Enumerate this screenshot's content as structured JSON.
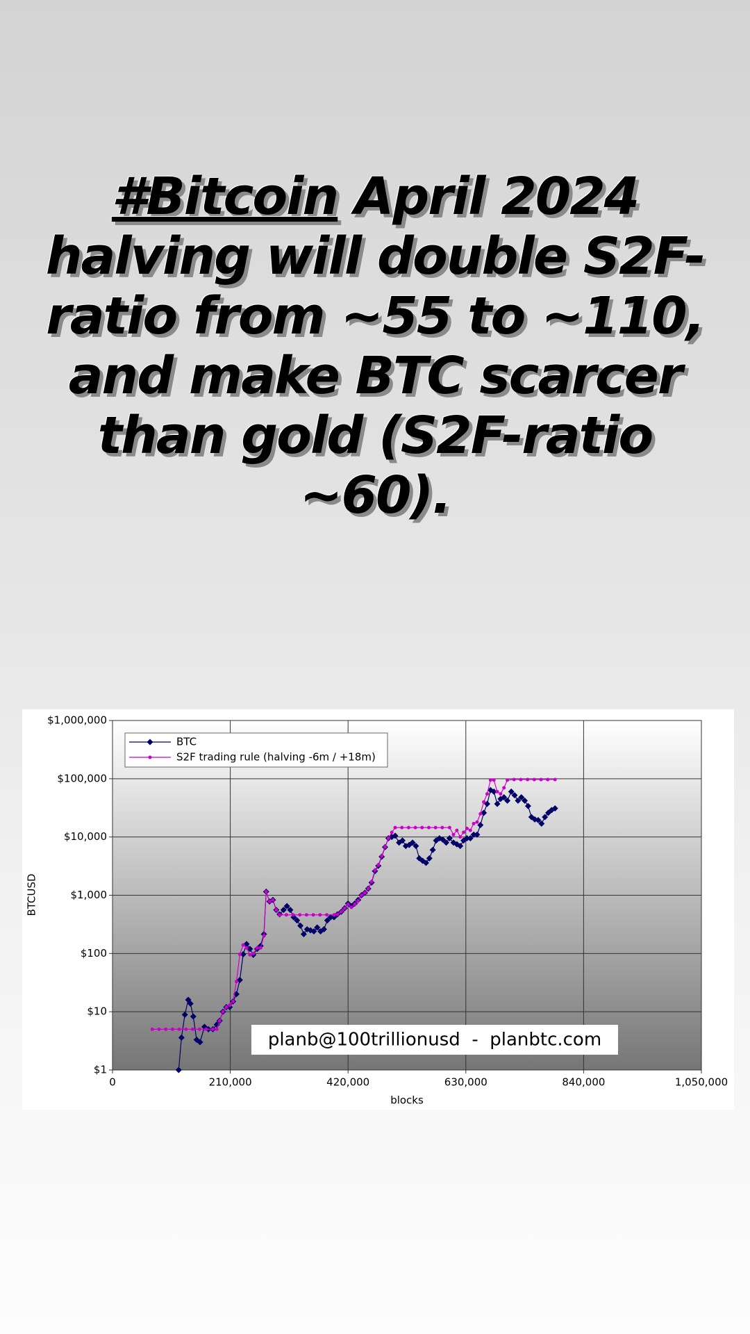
{
  "post": {
    "hashtag": "#Bitcoin",
    "text": "April 2024 halving will double S2F-ratio from ~55 to ~110, and make BTC scarcer than gold (S2F-ratio ~60)."
  },
  "chart_data": {
    "type": "line",
    "log_y": true,
    "grid": true,
    "legend": "top-left",
    "xlabel": "blocks",
    "ylabel": "BTCUSD",
    "watermark": "planb@100trillionusd  -  planbtc.com",
    "xlim": [
      0,
      1050000
    ],
    "xticks": [
      0,
      {
        "value": 210000,
        "label": "210,000"
      },
      {
        "value": 420000,
        "label": "420,000"
      },
      {
        "value": 630000,
        "label": "630,000"
      },
      {
        "value": 840000,
        "label": "840,000"
      },
      {
        "value": 1050000,
        "label": "1,050,000"
      }
    ],
    "ylim": [
      1,
      1000000
    ],
    "yticks": [
      {
        "value": 1,
        "label": "$1"
      },
      {
        "value": 10,
        "label": "$10"
      },
      {
        "value": 100,
        "label": "$100"
      },
      {
        "value": 1000,
        "label": "$1,000"
      },
      {
        "value": 10000,
        "label": "$10,000"
      },
      {
        "value": 100000,
        "label": "$100,000"
      },
      {
        "value": 1000000,
        "label": "$1,000,000"
      }
    ],
    "series": [
      {
        "name": "BTC",
        "color": "#000066",
        "marker": "diamond",
        "x": [
          118000,
          123000,
          129000,
          135000,
          139000,
          144000,
          150000,
          156000,
          164000,
          171000,
          179000,
          186000,
          191000,
          197000,
          203000,
          209000,
          215000,
          221000,
          227000,
          233000,
          239000,
          245000,
          251000,
          258000,
          264000,
          270000,
          274000,
          280000,
          286000,
          292000,
          298000,
          305000,
          311000,
          317000,
          323000,
          329000,
          335000,
          341000,
          347000,
          353000,
          359000,
          365000,
          371000,
          377000,
          383000,
          389000,
          395000,
          401000,
          408000,
          414000,
          420000,
          426000,
          432000,
          438000,
          444000,
          450000,
          456000,
          462000,
          468000,
          474000,
          480000,
          486000,
          492000,
          498000,
          504000,
          511000,
          517000,
          523000,
          529000,
          535000,
          541000,
          547000,
          553000,
          559000,
          565000,
          571000,
          577000,
          583000,
          589000,
          595000,
          601000,
          608000,
          614000,
          620000,
          626000,
          632000,
          638000,
          644000,
          650000,
          656000,
          662000,
          668000,
          674000,
          680000,
          686000,
          692000,
          698000,
          704000,
          711000,
          717000,
          723000,
          729000,
          735000,
          741000,
          747000,
          753000,
          759000,
          765000,
          771000,
          777000,
          783000,
          789000
        ],
        "values": [
          1,
          3.6,
          8.9,
          16,
          13.8,
          8.3,
          3.3,
          3,
          5.5,
          5,
          5,
          6,
          7,
          10,
          12,
          12,
          15,
          20,
          35,
          97,
          145,
          120,
          95,
          120,
          135,
          215,
          1150,
          780,
          830,
          560,
          470,
          560,
          650,
          560,
          420,
          370,
          300,
          215,
          260,
          250,
          240,
          280,
          240,
          260,
          370,
          420,
          420,
          470,
          520,
          600,
          720,
          650,
          720,
          830,
          1000,
          1100,
          1300,
          1650,
          2600,
          3200,
          4600,
          6700,
          9500,
          10000,
          10500,
          8000,
          8700,
          7000,
          7300,
          8000,
          7000,
          4300,
          3900,
          3600,
          4300,
          6000,
          8700,
          9500,
          9000,
          8000,
          9500,
          8000,
          7500,
          7000,
          8700,
          9500,
          9500,
          11000,
          11000,
          16000,
          26000,
          37000,
          64000,
          60000,
          37000,
          45000,
          48000,
          42000,
          60000,
          52000,
          42000,
          48000,
          42000,
          34000,
          22000,
          20000,
          19500,
          17000,
          22000,
          26000,
          29000,
          31000
        ]
      },
      {
        "name": "S2F trading rule (halving -6m / +18m)",
        "color": "#cc00cc",
        "marker": "dot",
        "x": [
          71000,
          83000,
          95000,
          107000,
          119000,
          131000,
          143000,
          155000,
          167000,
          179000,
          186000,
          191000,
          197000,
          203000,
          209000,
          215000,
          221000,
          227000,
          233000,
          239000,
          245000,
          251000,
          258000,
          264000,
          270000,
          274000,
          280000,
          286000,
          292000,
          298000,
          310000,
          322000,
          334000,
          346000,
          358000,
          370000,
          382000,
          395000,
          401000,
          408000,
          414000,
          420000,
          426000,
          432000,
          438000,
          444000,
          450000,
          456000,
          462000,
          468000,
          474000,
          480000,
          486000,
          492000,
          498000,
          504000,
          516000,
          528000,
          540000,
          552000,
          564000,
          576000,
          588000,
          601000,
          608000,
          614000,
          620000,
          626000,
          632000,
          638000,
          644000,
          650000,
          656000,
          662000,
          668000,
          674000,
          680000,
          686000,
          692000,
          698000,
          704000,
          716000,
          728000,
          740000,
          752000,
          764000,
          776000,
          789000
        ],
        "values": [
          5,
          5,
          5,
          5,
          5,
          5,
          5,
          5,
          5,
          5,
          5,
          7,
          10,
          12,
          13,
          15,
          33,
          97,
          140,
          125,
          95,
          100,
          125,
          125,
          200,
          1150,
          780,
          830,
          560,
          460,
          460,
          460,
          460,
          460,
          460,
          460,
          460,
          460,
          470,
          520,
          600,
          700,
          620,
          700,
          800,
          1000,
          1100,
          1300,
          1700,
          2700,
          3300,
          4700,
          6800,
          9500,
          12000,
          14500,
          14500,
          14500,
          14500,
          14500,
          14500,
          14500,
          14500,
          14500,
          11000,
          13000,
          10000,
          12000,
          14000,
          13000,
          17000,
          18000,
          25000,
          40000,
          55000,
          95000,
          95000,
          60000,
          55000,
          70000,
          95000,
          97000,
          97000,
          97000,
          97000,
          97000,
          97000,
          97000
        ]
      }
    ]
  }
}
